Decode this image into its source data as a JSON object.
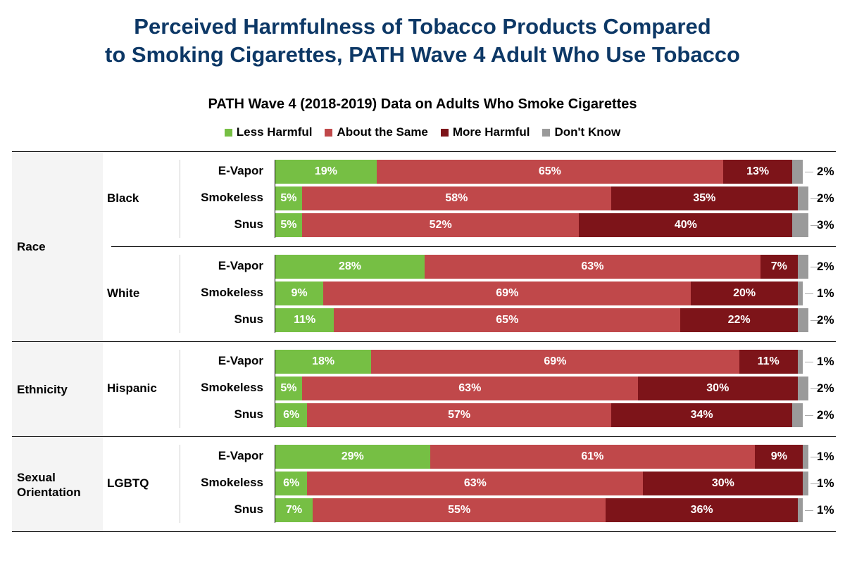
{
  "title_line1": "Perceived Harmfulness of Tobacco Products Compared",
  "title_line2": "to Smoking Cigarettes, PATH Wave 4 Adult Who Use Tobacco",
  "colors": {
    "title": "#0d3866",
    "less": "#76bf44",
    "same": "#c0484a",
    "more": "#7d1419",
    "dontknow": "#9a9a9a"
  },
  "chart_data": {
    "type": "bar",
    "orientation": "horizontal-stacked-100",
    "title": "PATH Wave 4 (2018-2019) Data on Adults Who Smoke Cigarettes",
    "legend_position": "top",
    "legend": [
      "Less Harmful",
      "About the Same",
      "More Harmful",
      "Don't Know"
    ],
    "groups": [
      {
        "category": "Race",
        "subgroups": [
          {
            "name": "Black",
            "rows": [
              {
                "product": "E-Vapor",
                "values": [
                  19,
                  65,
                  13,
                  2
                ]
              },
              {
                "product": "Smokeless",
                "values": [
                  5,
                  58,
                  35,
                  2
                ]
              },
              {
                "product": "Snus",
                "values": [
                  5,
                  52,
                  40,
                  3
                ]
              }
            ]
          },
          {
            "name": "White",
            "rows": [
              {
                "product": "E-Vapor",
                "values": [
                  28,
                  63,
                  7,
                  2
                ]
              },
              {
                "product": "Smokeless",
                "values": [
                  9,
                  69,
                  20,
                  1
                ]
              },
              {
                "product": "Snus",
                "values": [
                  11,
                  65,
                  22,
                  2
                ]
              }
            ]
          }
        ]
      },
      {
        "category": "Ethnicity",
        "subgroups": [
          {
            "name": "Hispanic",
            "rows": [
              {
                "product": "E-Vapor",
                "values": [
                  18,
                  69,
                  11,
                  1
                ]
              },
              {
                "product": "Smokeless",
                "values": [
                  5,
                  63,
                  30,
                  2
                ]
              },
              {
                "product": "Snus",
                "values": [
                  6,
                  57,
                  34,
                  2
                ]
              }
            ]
          }
        ]
      },
      {
        "category": "Sexual Orientation",
        "subgroups": [
          {
            "name": "LGBTQ",
            "rows": [
              {
                "product": "E-Vapor",
                "values": [
                  29,
                  61,
                  9,
                  1
                ]
              },
              {
                "product": "Smokeless",
                "values": [
                  6,
                  63,
                  30,
                  1
                ]
              },
              {
                "product": "Snus",
                "values": [
                  7,
                  55,
                  36,
                  1
                ]
              }
            ]
          }
        ]
      }
    ]
  }
}
